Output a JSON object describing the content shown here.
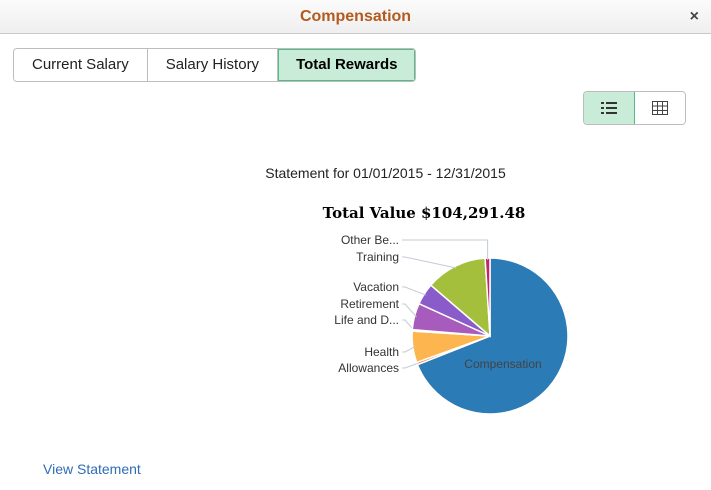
{
  "header": {
    "title": "Compensation",
    "close_label": "×"
  },
  "tabs": [
    {
      "label": "Current Salary",
      "active": false
    },
    {
      "label": "Salary History",
      "active": false
    },
    {
      "label": "Total Rewards",
      "active": true
    }
  ],
  "view_toggle": {
    "list_icon": "list-icon",
    "grid_icon": "grid-icon",
    "active": "list"
  },
  "statement_label": "Statement for 01/01/2015 - 12/31/2015",
  "total_label": "Total Value $104,291.48",
  "view_statement_link": "View Statement",
  "chart_data": {
    "type": "pie",
    "title": "Total Value $104,291.48",
    "unit": "percent of total (estimated)",
    "slices": [
      {
        "label": "Compensation",
        "value": 69.0,
        "color": "#2b7bb6"
      },
      {
        "label": "Allowances",
        "value": 0.5,
        "color": "#f2683a"
      },
      {
        "label": "Health",
        "value": 6.5,
        "color": "#fdb54f"
      },
      {
        "label": "Life and D...",
        "value": 0.3,
        "color": "#7fd0c8"
      },
      {
        "label": "Retirement",
        "value": 5.5,
        "color": "#a75bbd"
      },
      {
        "label": "Vacation",
        "value": 4.5,
        "color": "#8a5cc9"
      },
      {
        "label": "Training",
        "value": 12.7,
        "color": "#a3bf3b"
      },
      {
        "label": "Other Be...",
        "value": 1.0,
        "color": "#c2256a"
      }
    ],
    "start_angle": "top, clockwise"
  }
}
